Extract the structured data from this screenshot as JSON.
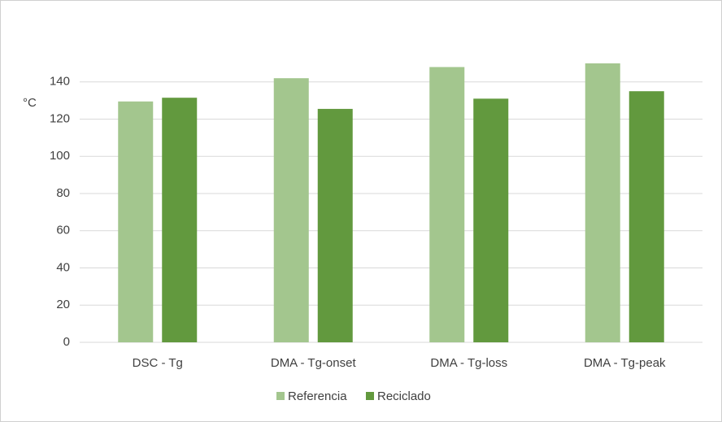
{
  "chart_data": {
    "type": "bar",
    "y_label": "°C",
    "categories": [
      "DSC - Tg",
      "DMA - Tg-onset",
      "DMA - Tg-loss",
      "DMA - Tg-peak"
    ],
    "series": [
      {
        "name": "Referencia",
        "color": "#a3c68e",
        "values": [
          129.5,
          142,
          148,
          150
        ]
      },
      {
        "name": "Reciclado",
        "color": "#62993e",
        "values": [
          131.5,
          125.5,
          131,
          135
        ]
      }
    ],
    "ylim": [
      0,
      160
    ],
    "yticks": [
      0,
      20,
      40,
      60,
      80,
      100,
      120,
      140
    ],
    "grid": true,
    "legend": "bottom"
  }
}
